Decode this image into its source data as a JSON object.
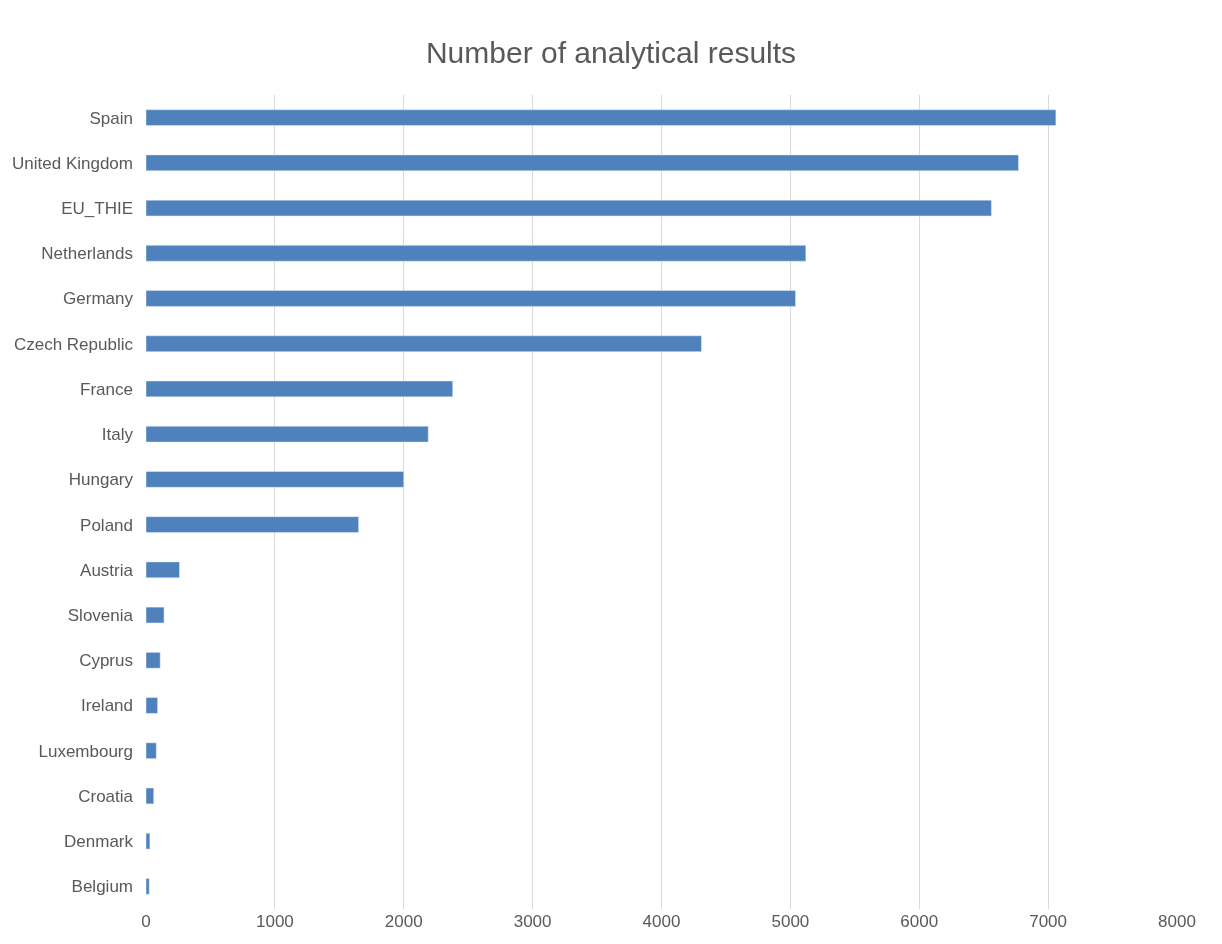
{
  "chart_data": {
    "type": "bar",
    "title": "Number of analytical results",
    "orientation": "horizontal",
    "categories": [
      "Spain",
      "United Kingdom",
      "EU_THIE",
      "Netherlands",
      "Germany",
      "Czech Republic",
      "France",
      "Italy",
      "Hungary",
      "Poland",
      "Austria",
      "Slovenia",
      "Cyprus",
      "Ireland",
      "Luxembourg",
      "Croatia",
      "Denmark",
      "Belgium"
    ],
    "values": [
      7060,
      6770,
      6560,
      5120,
      5040,
      4310,
      2380,
      2190,
      2000,
      1650,
      260,
      140,
      110,
      90,
      80,
      60,
      30,
      25
    ],
    "color": "#4f81bd",
    "xlim": [
      0,
      8000
    ],
    "xticks": [
      0,
      1000,
      2000,
      3000,
      4000,
      5000,
      6000,
      7000,
      8000
    ],
    "grid": "x"
  }
}
